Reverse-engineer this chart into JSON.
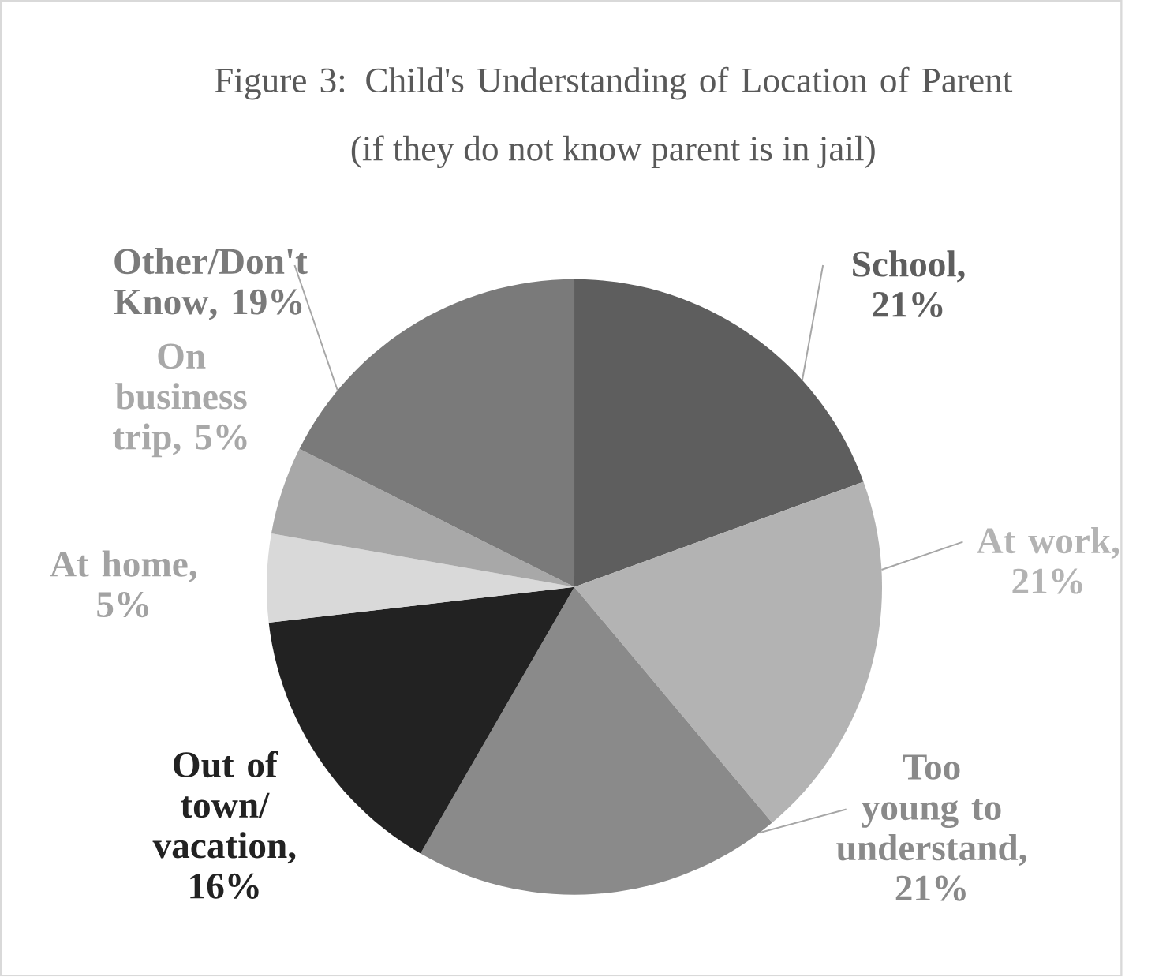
{
  "chart_data": {
    "type": "pie",
    "title": "Figure 3: Child's Understanding of Location of Parent",
    "subtitle": "(if they do not know parent is in jail)",
    "categories": [
      "School",
      "At work",
      "Too young to understand",
      "Out of town/ vacation",
      "At home",
      "On business trip",
      "Other/Don't Know"
    ],
    "values": [
      21,
      21,
      21,
      16,
      5,
      5,
      19
    ],
    "value_labels": [
      ", 21%",
      ", 21%",
      ", 21%",
      ", 16%",
      ", 5%",
      ", 5%",
      ", 19%"
    ],
    "colors": [
      "#5e5e5e",
      "#b3b3b3",
      "#8a8a8a",
      "#222222",
      "#d9d9d9",
      "#a8a8a8",
      "#7a7a7a"
    ]
  }
}
